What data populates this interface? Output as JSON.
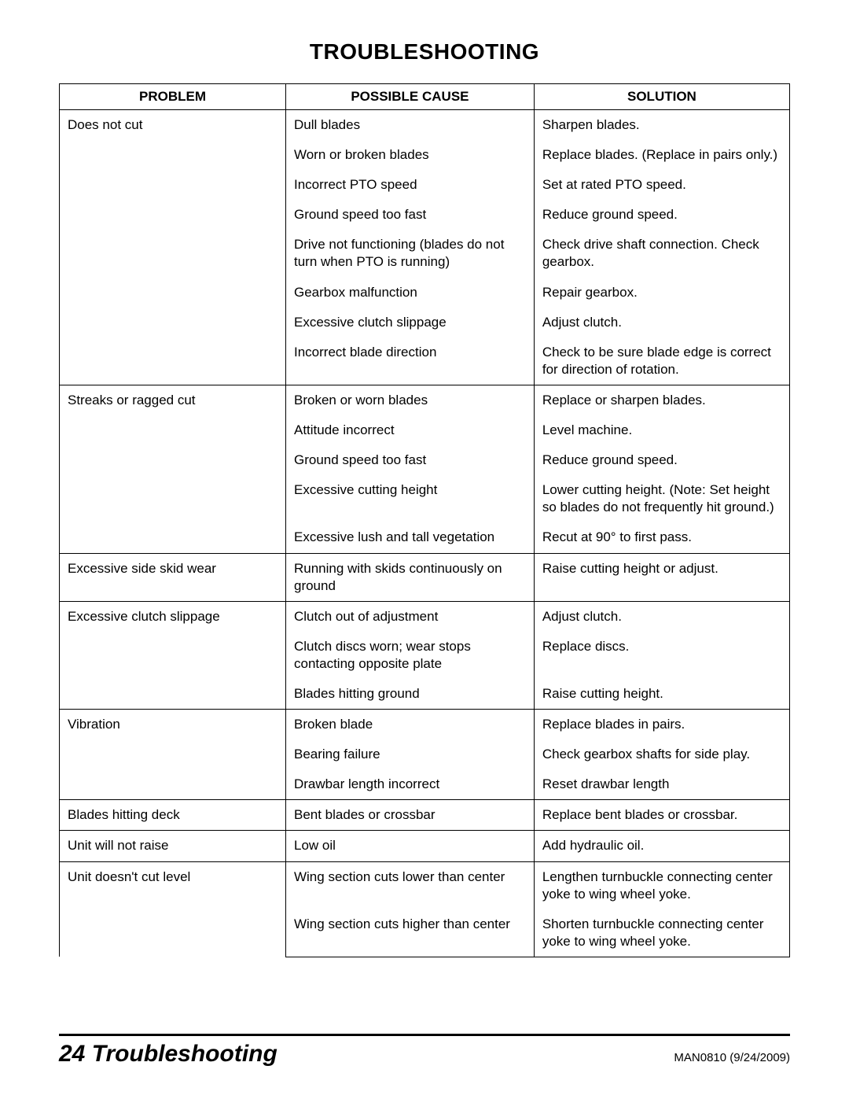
{
  "title": "TROUBLESHOOTING",
  "columns": {
    "problem": "PROBLEM",
    "cause": "POSSIBLE CAUSE",
    "solution": "SOLUTION"
  },
  "groups": [
    {
      "problem": "Does not cut",
      "rows": [
        {
          "cause": "Dull blades",
          "solution": "Sharpen blades."
        },
        {
          "cause": "Worn or broken blades",
          "solution": "Replace blades. (Replace in pairs only.)"
        },
        {
          "cause": "Incorrect PTO speed",
          "solution": "Set at rated PTO speed."
        },
        {
          "cause": "Ground speed too fast",
          "solution": "Reduce ground speed."
        },
        {
          "cause": "Drive not functioning (blades do not turn when PTO is running)",
          "solution": "Check drive shaft connection. Check gearbox."
        },
        {
          "cause": "Gearbox malfunction",
          "solution": "Repair gearbox."
        },
        {
          "cause": "Excessive clutch slippage",
          "solution": "Adjust clutch."
        },
        {
          "cause": "Incorrect blade direction",
          "solution": "Check to be sure blade edge is correct for direction of rotation."
        }
      ]
    },
    {
      "problem": "Streaks or ragged cut",
      "rows": [
        {
          "cause": "Broken or worn blades",
          "solution": "Replace or sharpen blades."
        },
        {
          "cause": "Attitude incorrect",
          "solution": "Level machine."
        },
        {
          "cause": "Ground speed too fast",
          "solution": "Reduce ground speed."
        },
        {
          "cause": "Excessive cutting height",
          "solution": "Lower cutting height. (Note: Set height so blades do not frequently hit ground.)"
        },
        {
          "cause": "Excessive lush and tall vegetation",
          "solution": "Recut at 90° to first pass."
        }
      ]
    },
    {
      "problem": "Excessive side skid wear",
      "rows": [
        {
          "cause": "Running with skids continuously on ground",
          "solution": "Raise cutting height or adjust."
        }
      ]
    },
    {
      "problem": "Excessive clutch slippage",
      "rows": [
        {
          "cause": "Clutch out of adjustment",
          "solution": "Adjust clutch."
        },
        {
          "cause": "Clutch discs worn; wear stops contacting opposite plate",
          "solution": "Replace discs."
        },
        {
          "cause": "Blades hitting ground",
          "solution": "Raise cutting height."
        }
      ]
    },
    {
      "problem": "Vibration",
      "rows": [
        {
          "cause": "Broken blade",
          "solution": "Replace blades in pairs."
        },
        {
          "cause": "Bearing failure",
          "solution": "Check gearbox shafts for side play."
        },
        {
          "cause": "Drawbar length incorrect",
          "solution": "Reset drawbar length"
        }
      ]
    },
    {
      "problem": "Blades hitting deck",
      "rows": [
        {
          "cause": "Bent blades or crossbar",
          "solution": "Replace bent blades or crossbar."
        }
      ]
    },
    {
      "problem": "Unit will not raise",
      "rows": [
        {
          "cause": "Low oil",
          "solution": "Add hydraulic oil."
        }
      ]
    },
    {
      "problem": "Unit doesn't cut level",
      "rows": [
        {
          "cause": "Wing section cuts lower than center",
          "solution": "Lengthen turnbuckle connecting center yoke to wing wheel yoke."
        },
        {
          "cause": "Wing section cuts higher than center",
          "solution": "Shorten turnbuckle connecting center yoke to wing wheel yoke."
        }
      ]
    }
  ],
  "footer": {
    "page_number": "24",
    "section": "Troubleshooting",
    "doc_id": "MAN0810 (9/24/2009)"
  }
}
